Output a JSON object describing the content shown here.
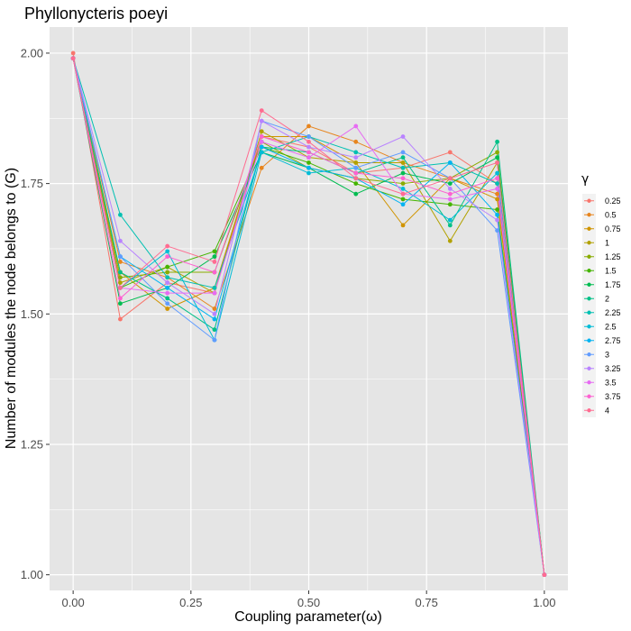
{
  "chart_data": {
    "type": "line",
    "title": "Phyllonycteris poeyi",
    "xlabel": "Coupling parameter(ω)",
    "ylabel": "Number of modules the node belongs to (G)",
    "x": [
      0.0,
      0.1,
      0.2,
      0.3,
      0.4,
      0.5,
      0.6,
      0.7,
      0.8,
      0.9,
      1.0
    ],
    "xlim": [
      -0.05,
      1.05
    ],
    "ylim": [
      0.97,
      2.05
    ],
    "xticks": [
      0.0,
      0.25,
      0.5,
      0.75,
      1.0
    ],
    "xtick_labels": [
      "0.00",
      "0.25",
      "0.50",
      "0.75",
      "1.00"
    ],
    "yticks": [
      1.0,
      1.25,
      1.5,
      1.75,
      2.0
    ],
    "ytick_labels": [
      "1.00",
      "1.25",
      "1.50",
      "1.75",
      "2.00"
    ],
    "grid": true,
    "legend_title": "γ",
    "legend_position": "right",
    "panel_background": "#e5e5e5",
    "grid_color": "#ffffff",
    "series": [
      {
        "name": "0.25",
        "color": "#F8766D",
        "values": [
          2.0,
          1.49,
          1.56,
          1.54,
          1.84,
          1.82,
          1.77,
          1.78,
          1.81,
          1.75,
          1.0
        ]
      },
      {
        "name": "0.5",
        "color": "#E7851E",
        "values": [
          1.99,
          1.6,
          1.57,
          1.51,
          1.78,
          1.86,
          1.83,
          1.79,
          1.76,
          1.73,
          1.0
        ]
      },
      {
        "name": "0.75",
        "color": "#D09400",
        "values": [
          1.99,
          1.58,
          1.51,
          1.55,
          1.84,
          1.84,
          1.79,
          1.67,
          1.76,
          1.72,
          1.0
        ]
      },
      {
        "name": "1",
        "color": "#B2A100",
        "values": [
          1.99,
          1.56,
          1.59,
          1.54,
          1.85,
          1.8,
          1.79,
          1.79,
          1.64,
          1.79,
          1.0
        ]
      },
      {
        "name": "1.25",
        "color": "#89AC00",
        "values": [
          1.99,
          1.57,
          1.58,
          1.58,
          1.83,
          1.78,
          1.76,
          1.75,
          1.76,
          1.81,
          1.0
        ]
      },
      {
        "name": "1.5",
        "color": "#45B500",
        "values": [
          1.99,
          1.55,
          1.59,
          1.62,
          1.82,
          1.79,
          1.75,
          1.72,
          1.71,
          1.7,
          1.0
        ]
      },
      {
        "name": "1.75",
        "color": "#00BC51",
        "values": [
          1.99,
          1.52,
          1.55,
          1.61,
          1.81,
          1.78,
          1.73,
          1.77,
          1.75,
          1.8,
          1.0
        ]
      },
      {
        "name": "2",
        "color": "#00C087",
        "values": [
          1.99,
          1.58,
          1.53,
          1.47,
          1.82,
          1.81,
          1.77,
          1.8,
          1.67,
          1.83,
          1.0
        ]
      },
      {
        "name": "2.25",
        "color": "#00C0B2",
        "values": [
          1.99,
          1.69,
          1.57,
          1.55,
          1.81,
          1.84,
          1.81,
          1.78,
          1.79,
          1.75,
          1.0
        ]
      },
      {
        "name": "2.5",
        "color": "#00BCD6",
        "values": [
          1.99,
          1.55,
          1.62,
          1.45,
          1.81,
          1.77,
          1.78,
          1.74,
          1.68,
          1.77,
          1.0
        ]
      },
      {
        "name": "2.75",
        "color": "#00B3F2",
        "values": [
          1.99,
          1.61,
          1.55,
          1.49,
          1.82,
          1.78,
          1.76,
          1.71,
          1.79,
          1.69,
          1.0
        ]
      },
      {
        "name": "3",
        "color": "#619CFF",
        "values": [
          1.99,
          1.61,
          1.52,
          1.45,
          1.87,
          1.84,
          1.78,
          1.81,
          1.76,
          1.66,
          1.0
        ]
      },
      {
        "name": "3.25",
        "color": "#B983FF",
        "values": [
          1.99,
          1.64,
          1.56,
          1.5,
          1.87,
          1.82,
          1.8,
          1.84,
          1.74,
          1.68,
          1.0
        ]
      },
      {
        "name": "3.5",
        "color": "#E76BF3",
        "values": [
          1.99,
          1.55,
          1.54,
          1.54,
          1.83,
          1.8,
          1.86,
          1.73,
          1.72,
          1.74,
          1.0
        ]
      },
      {
        "name": "3.75",
        "color": "#FD61D1",
        "values": [
          1.99,
          1.53,
          1.61,
          1.58,
          1.84,
          1.81,
          1.77,
          1.76,
          1.73,
          1.76,
          1.0
        ]
      },
      {
        "name": "4",
        "color": "#FF6C91",
        "values": [
          1.99,
          1.55,
          1.63,
          1.6,
          1.89,
          1.83,
          1.76,
          1.73,
          1.76,
          1.79,
          1.0
        ]
      }
    ]
  }
}
